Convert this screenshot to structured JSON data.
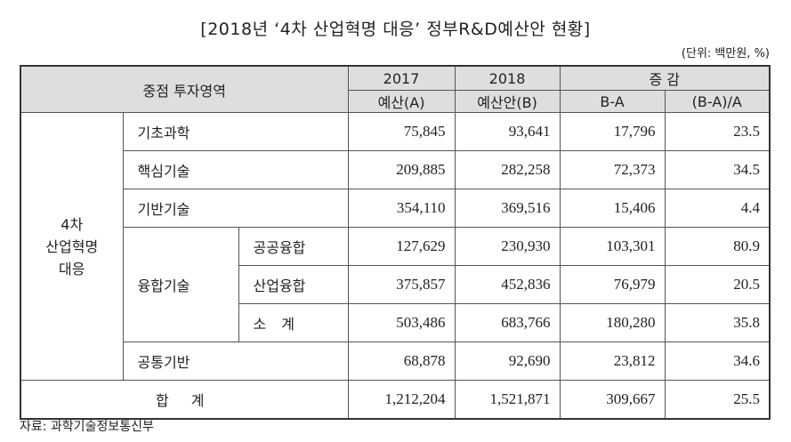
{
  "title": "[2018년 ‘4차 산업혁명 대응’ 정부R&D예산안 현황]",
  "unit": "(단위: 백만원, %)",
  "header": {
    "area": "중점 투자영역",
    "y2017_line1": "2017",
    "y2017_line2": "예산(A)",
    "y2018_line1": "2018",
    "y2018_line2": "예산안(B)",
    "change": "증 감",
    "diff": "B-A",
    "rate": "(B-A)/A"
  },
  "group": {
    "line1": "4차",
    "line2": "산업혁명",
    "line3": "대응"
  },
  "fusion": "융합기술",
  "rows": [
    {
      "name": "기초과학",
      "a": "75,845",
      "b": "93,641",
      "diff": "17,796",
      "rate": "23.5"
    },
    {
      "name": "핵심기술",
      "a": "209,885",
      "b": "282,258",
      "diff": "72,373",
      "rate": "34.5"
    },
    {
      "name": "기반기술",
      "a": "354,110",
      "b": "369,516",
      "diff": "15,406",
      "rate": "4.4"
    },
    {
      "name": "공공융합",
      "a": "127,629",
      "b": "230,930",
      "diff": "103,301",
      "rate": "80.9"
    },
    {
      "name": "산업융합",
      "a": "375,857",
      "b": "452,836",
      "diff": "76,979",
      "rate": "20.5"
    },
    {
      "name": "소 계",
      "a": "503,486",
      "b": "683,766",
      "diff": "180,280",
      "rate": "35.8"
    },
    {
      "name": "공통기반",
      "a": "68,878",
      "b": "92,690",
      "diff": "23,812",
      "rate": "34.6"
    },
    {
      "name": "합 계",
      "a": "1,212,204",
      "b": "1,521,871",
      "diff": "309,667",
      "rate": "25.5"
    }
  ],
  "source": "자료: 과학기술정보통신부"
}
